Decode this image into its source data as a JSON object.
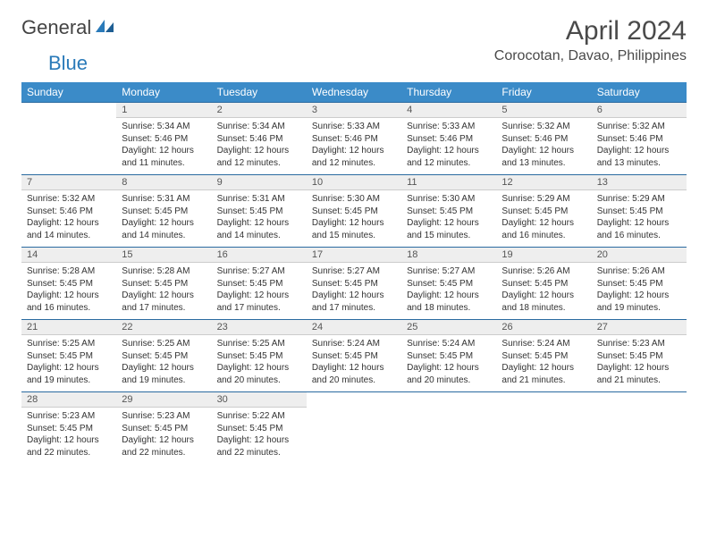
{
  "logo": {
    "word1": "General",
    "word2": "Blue"
  },
  "title": "April 2024",
  "location": "Corocotan, Davao, Philippines",
  "colors": {
    "header_bg": "#3b8bc8",
    "header_text": "#ffffff",
    "daynum_bg": "#eeeeee",
    "rule": "#2a6aa0",
    "logo_accent": "#2a7ab9"
  },
  "day_headers": [
    "Sunday",
    "Monday",
    "Tuesday",
    "Wednesday",
    "Thursday",
    "Friday",
    "Saturday"
  ],
  "weeks": [
    {
      "nums": [
        "",
        "1",
        "2",
        "3",
        "4",
        "5",
        "6"
      ],
      "cells": [
        null,
        {
          "sunrise": "5:34 AM",
          "sunset": "5:46 PM",
          "daylight": "12 hours and 11 minutes."
        },
        {
          "sunrise": "5:34 AM",
          "sunset": "5:46 PM",
          "daylight": "12 hours and 12 minutes."
        },
        {
          "sunrise": "5:33 AM",
          "sunset": "5:46 PM",
          "daylight": "12 hours and 12 minutes."
        },
        {
          "sunrise": "5:33 AM",
          "sunset": "5:46 PM",
          "daylight": "12 hours and 12 minutes."
        },
        {
          "sunrise": "5:32 AM",
          "sunset": "5:46 PM",
          "daylight": "12 hours and 13 minutes."
        },
        {
          "sunrise": "5:32 AM",
          "sunset": "5:46 PM",
          "daylight": "12 hours and 13 minutes."
        }
      ]
    },
    {
      "nums": [
        "7",
        "8",
        "9",
        "10",
        "11",
        "12",
        "13"
      ],
      "cells": [
        {
          "sunrise": "5:32 AM",
          "sunset": "5:46 PM",
          "daylight": "12 hours and 14 minutes."
        },
        {
          "sunrise": "5:31 AM",
          "sunset": "5:45 PM",
          "daylight": "12 hours and 14 minutes."
        },
        {
          "sunrise": "5:31 AM",
          "sunset": "5:45 PM",
          "daylight": "12 hours and 14 minutes."
        },
        {
          "sunrise": "5:30 AM",
          "sunset": "5:45 PM",
          "daylight": "12 hours and 15 minutes."
        },
        {
          "sunrise": "5:30 AM",
          "sunset": "5:45 PM",
          "daylight": "12 hours and 15 minutes."
        },
        {
          "sunrise": "5:29 AM",
          "sunset": "5:45 PM",
          "daylight": "12 hours and 16 minutes."
        },
        {
          "sunrise": "5:29 AM",
          "sunset": "5:45 PM",
          "daylight": "12 hours and 16 minutes."
        }
      ]
    },
    {
      "nums": [
        "14",
        "15",
        "16",
        "17",
        "18",
        "19",
        "20"
      ],
      "cells": [
        {
          "sunrise": "5:28 AM",
          "sunset": "5:45 PM",
          "daylight": "12 hours and 16 minutes."
        },
        {
          "sunrise": "5:28 AM",
          "sunset": "5:45 PM",
          "daylight": "12 hours and 17 minutes."
        },
        {
          "sunrise": "5:27 AM",
          "sunset": "5:45 PM",
          "daylight": "12 hours and 17 minutes."
        },
        {
          "sunrise": "5:27 AM",
          "sunset": "5:45 PM",
          "daylight": "12 hours and 17 minutes."
        },
        {
          "sunrise": "5:27 AM",
          "sunset": "5:45 PM",
          "daylight": "12 hours and 18 minutes."
        },
        {
          "sunrise": "5:26 AM",
          "sunset": "5:45 PM",
          "daylight": "12 hours and 18 minutes."
        },
        {
          "sunrise": "5:26 AM",
          "sunset": "5:45 PM",
          "daylight": "12 hours and 19 minutes."
        }
      ]
    },
    {
      "nums": [
        "21",
        "22",
        "23",
        "24",
        "25",
        "26",
        "27"
      ],
      "cells": [
        {
          "sunrise": "5:25 AM",
          "sunset": "5:45 PM",
          "daylight": "12 hours and 19 minutes."
        },
        {
          "sunrise": "5:25 AM",
          "sunset": "5:45 PM",
          "daylight": "12 hours and 19 minutes."
        },
        {
          "sunrise": "5:25 AM",
          "sunset": "5:45 PM",
          "daylight": "12 hours and 20 minutes."
        },
        {
          "sunrise": "5:24 AM",
          "sunset": "5:45 PM",
          "daylight": "12 hours and 20 minutes."
        },
        {
          "sunrise": "5:24 AM",
          "sunset": "5:45 PM",
          "daylight": "12 hours and 20 minutes."
        },
        {
          "sunrise": "5:24 AM",
          "sunset": "5:45 PM",
          "daylight": "12 hours and 21 minutes."
        },
        {
          "sunrise": "5:23 AM",
          "sunset": "5:45 PM",
          "daylight": "12 hours and 21 minutes."
        }
      ]
    },
    {
      "nums": [
        "28",
        "29",
        "30",
        "",
        "",
        "",
        ""
      ],
      "cells": [
        {
          "sunrise": "5:23 AM",
          "sunset": "5:45 PM",
          "daylight": "12 hours and 22 minutes."
        },
        {
          "sunrise": "5:23 AM",
          "sunset": "5:45 PM",
          "daylight": "12 hours and 22 minutes."
        },
        {
          "sunrise": "5:22 AM",
          "sunset": "5:45 PM",
          "daylight": "12 hours and 22 minutes."
        },
        null,
        null,
        null,
        null
      ]
    }
  ],
  "labels": {
    "sunrise": "Sunrise: ",
    "sunset": "Sunset: ",
    "daylight": "Daylight: "
  }
}
